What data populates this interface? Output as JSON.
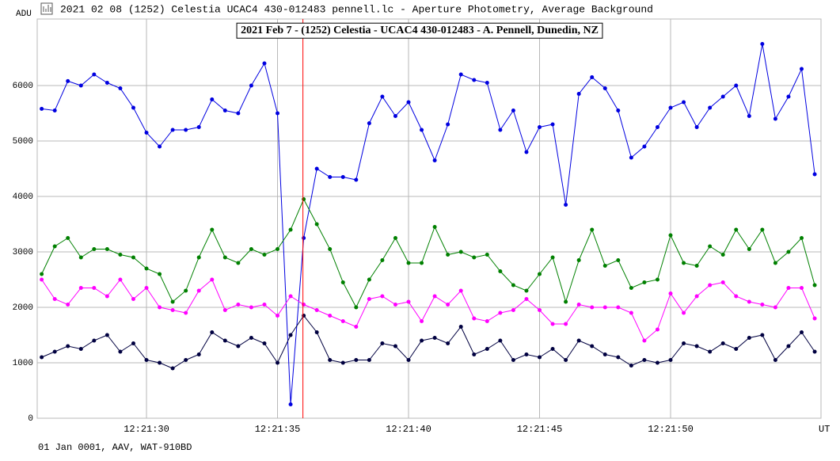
{
  "window_title": "2021 02 08 (1252) Celestia UCAC4 430-012483 pennell.lc - Aperture Photometry, Average Background",
  "footer": "01 Jan 0001, AAV, WAT-910BD",
  "chart_data": {
    "type": "line",
    "title": "2021 Feb 7 - (1252) Celestia - UCAC4 430-012483 - A. Pennell, Dunedin, NZ",
    "y_label": "ADU",
    "x_label": "UT",
    "xlim": [
      25.83,
      55.74
    ],
    "ylim": [
      0,
      7200
    ],
    "xticks": [
      {
        "value": 30,
        "label": "12:21:30"
      },
      {
        "value": 35,
        "label": "12:21:35"
      },
      {
        "value": 40,
        "label": "12:21:40"
      },
      {
        "value": 45,
        "label": "12:21:45"
      },
      {
        "value": 50,
        "label": "12:21:50"
      }
    ],
    "yticks": [
      0,
      1000,
      2000,
      3000,
      4000,
      5000,
      6000
    ],
    "grid": true,
    "cursor_x": 35.97,
    "cursor_color": "#ff0000",
    "x": [
      26,
      26.5,
      27,
      27.5,
      28,
      28.5,
      29,
      29.5,
      30,
      30.5,
      31,
      31.5,
      32,
      32.5,
      33,
      33.5,
      34,
      34.5,
      35,
      35.5,
      36,
      36.5,
      37,
      37.5,
      38,
      38.5,
      39,
      39.5,
      40,
      40.5,
      41,
      41.5,
      42,
      42.5,
      43,
      43.5,
      44,
      44.5,
      45,
      45.5,
      46,
      46.5,
      47,
      47.5,
      48,
      48.5,
      49,
      49.5,
      50,
      50.5,
      51,
      51.5,
      52,
      52.5,
      53,
      53.5,
      54,
      54.5,
      55,
      55.5
    ],
    "series": [
      {
        "color": "#0000e0",
        "values": [
          5580,
          5550,
          6080,
          6000,
          6200,
          6050,
          5950,
          5600,
          5150,
          4900,
          5200,
          5200,
          5250,
          5750,
          5550,
          5500,
          6000,
          6400,
          5500,
          250,
          3250,
          4500,
          4350,
          4350,
          4300,
          5320,
          5800,
          5450,
          5700,
          5200,
          4650,
          5300,
          6200,
          6100,
          6050,
          5200,
          5550,
          4800,
          5250,
          5300,
          3850,
          5850,
          6150,
          5950,
          5550,
          4700,
          4900,
          5250,
          5600,
          5700,
          5250,
          5600,
          5800,
          6000,
          5450,
          6750,
          5400,
          5800,
          6300,
          4400
        ]
      },
      {
        "color": "#008000",
        "values": [
          2600,
          3100,
          3250,
          2900,
          3050,
          3050,
          2950,
          2900,
          2700,
          2600,
          2100,
          2300,
          2900,
          3400,
          2900,
          2800,
          3050,
          2950,
          3050,
          3400,
          3950,
          3500,
          3050,
          2450,
          2000,
          2500,
          2850,
          3250,
          2800,
          2800,
          3450,
          2950,
          3000,
          2900,
          2950,
          2650,
          2400,
          2300,
          2600,
          2900,
          2100,
          2850,
          3400,
          2750,
          2850,
          2350,
          2450,
          2500,
          3300,
          2800,
          2750,
          3100,
          2950,
          3400,
          3050,
          3400,
          2800,
          3000,
          3250,
          2400
        ]
      },
      {
        "color": "#ff00ff",
        "values": [
          2500,
          2150,
          2050,
          2350,
          2350,
          2200,
          2500,
          2150,
          2350,
          2000,
          1950,
          1900,
          2300,
          2500,
          1950,
          2050,
          2000,
          2050,
          1850,
          2200,
          2050,
          1950,
          1850,
          1750,
          1650,
          2150,
          2200,
          2050,
          2100,
          1750,
          2200,
          2050,
          2300,
          1800,
          1750,
          1900,
          1950,
          2150,
          1950,
          1700,
          1700,
          2050,
          2000,
          2000,
          2000,
          1900,
          1400,
          1600,
          2250,
          1900,
          2200,
          2400,
          2450,
          2200,
          2100,
          2050,
          2000,
          2350,
          2350,
          1800
        ]
      },
      {
        "color": "#000040",
        "values": [
          1100,
          1200,
          1300,
          1250,
          1400,
          1500,
          1200,
          1350,
          1050,
          1000,
          900,
          1050,
          1150,
          1550,
          1400,
          1300,
          1450,
          1350,
          1000,
          1500,
          1850,
          1550,
          1050,
          1000,
          1050,
          1050,
          1350,
          1300,
          1050,
          1400,
          1450,
          1350,
          1650,
          1150,
          1250,
          1400,
          1050,
          1150,
          1100,
          1250,
          1050,
          1400,
          1300,
          1150,
          1100,
          950,
          1050,
          1000,
          1050,
          1350,
          1300,
          1200,
          1350,
          1250,
          1450,
          1500,
          1050,
          1300,
          1550,
          1200
        ]
      }
    ]
  }
}
